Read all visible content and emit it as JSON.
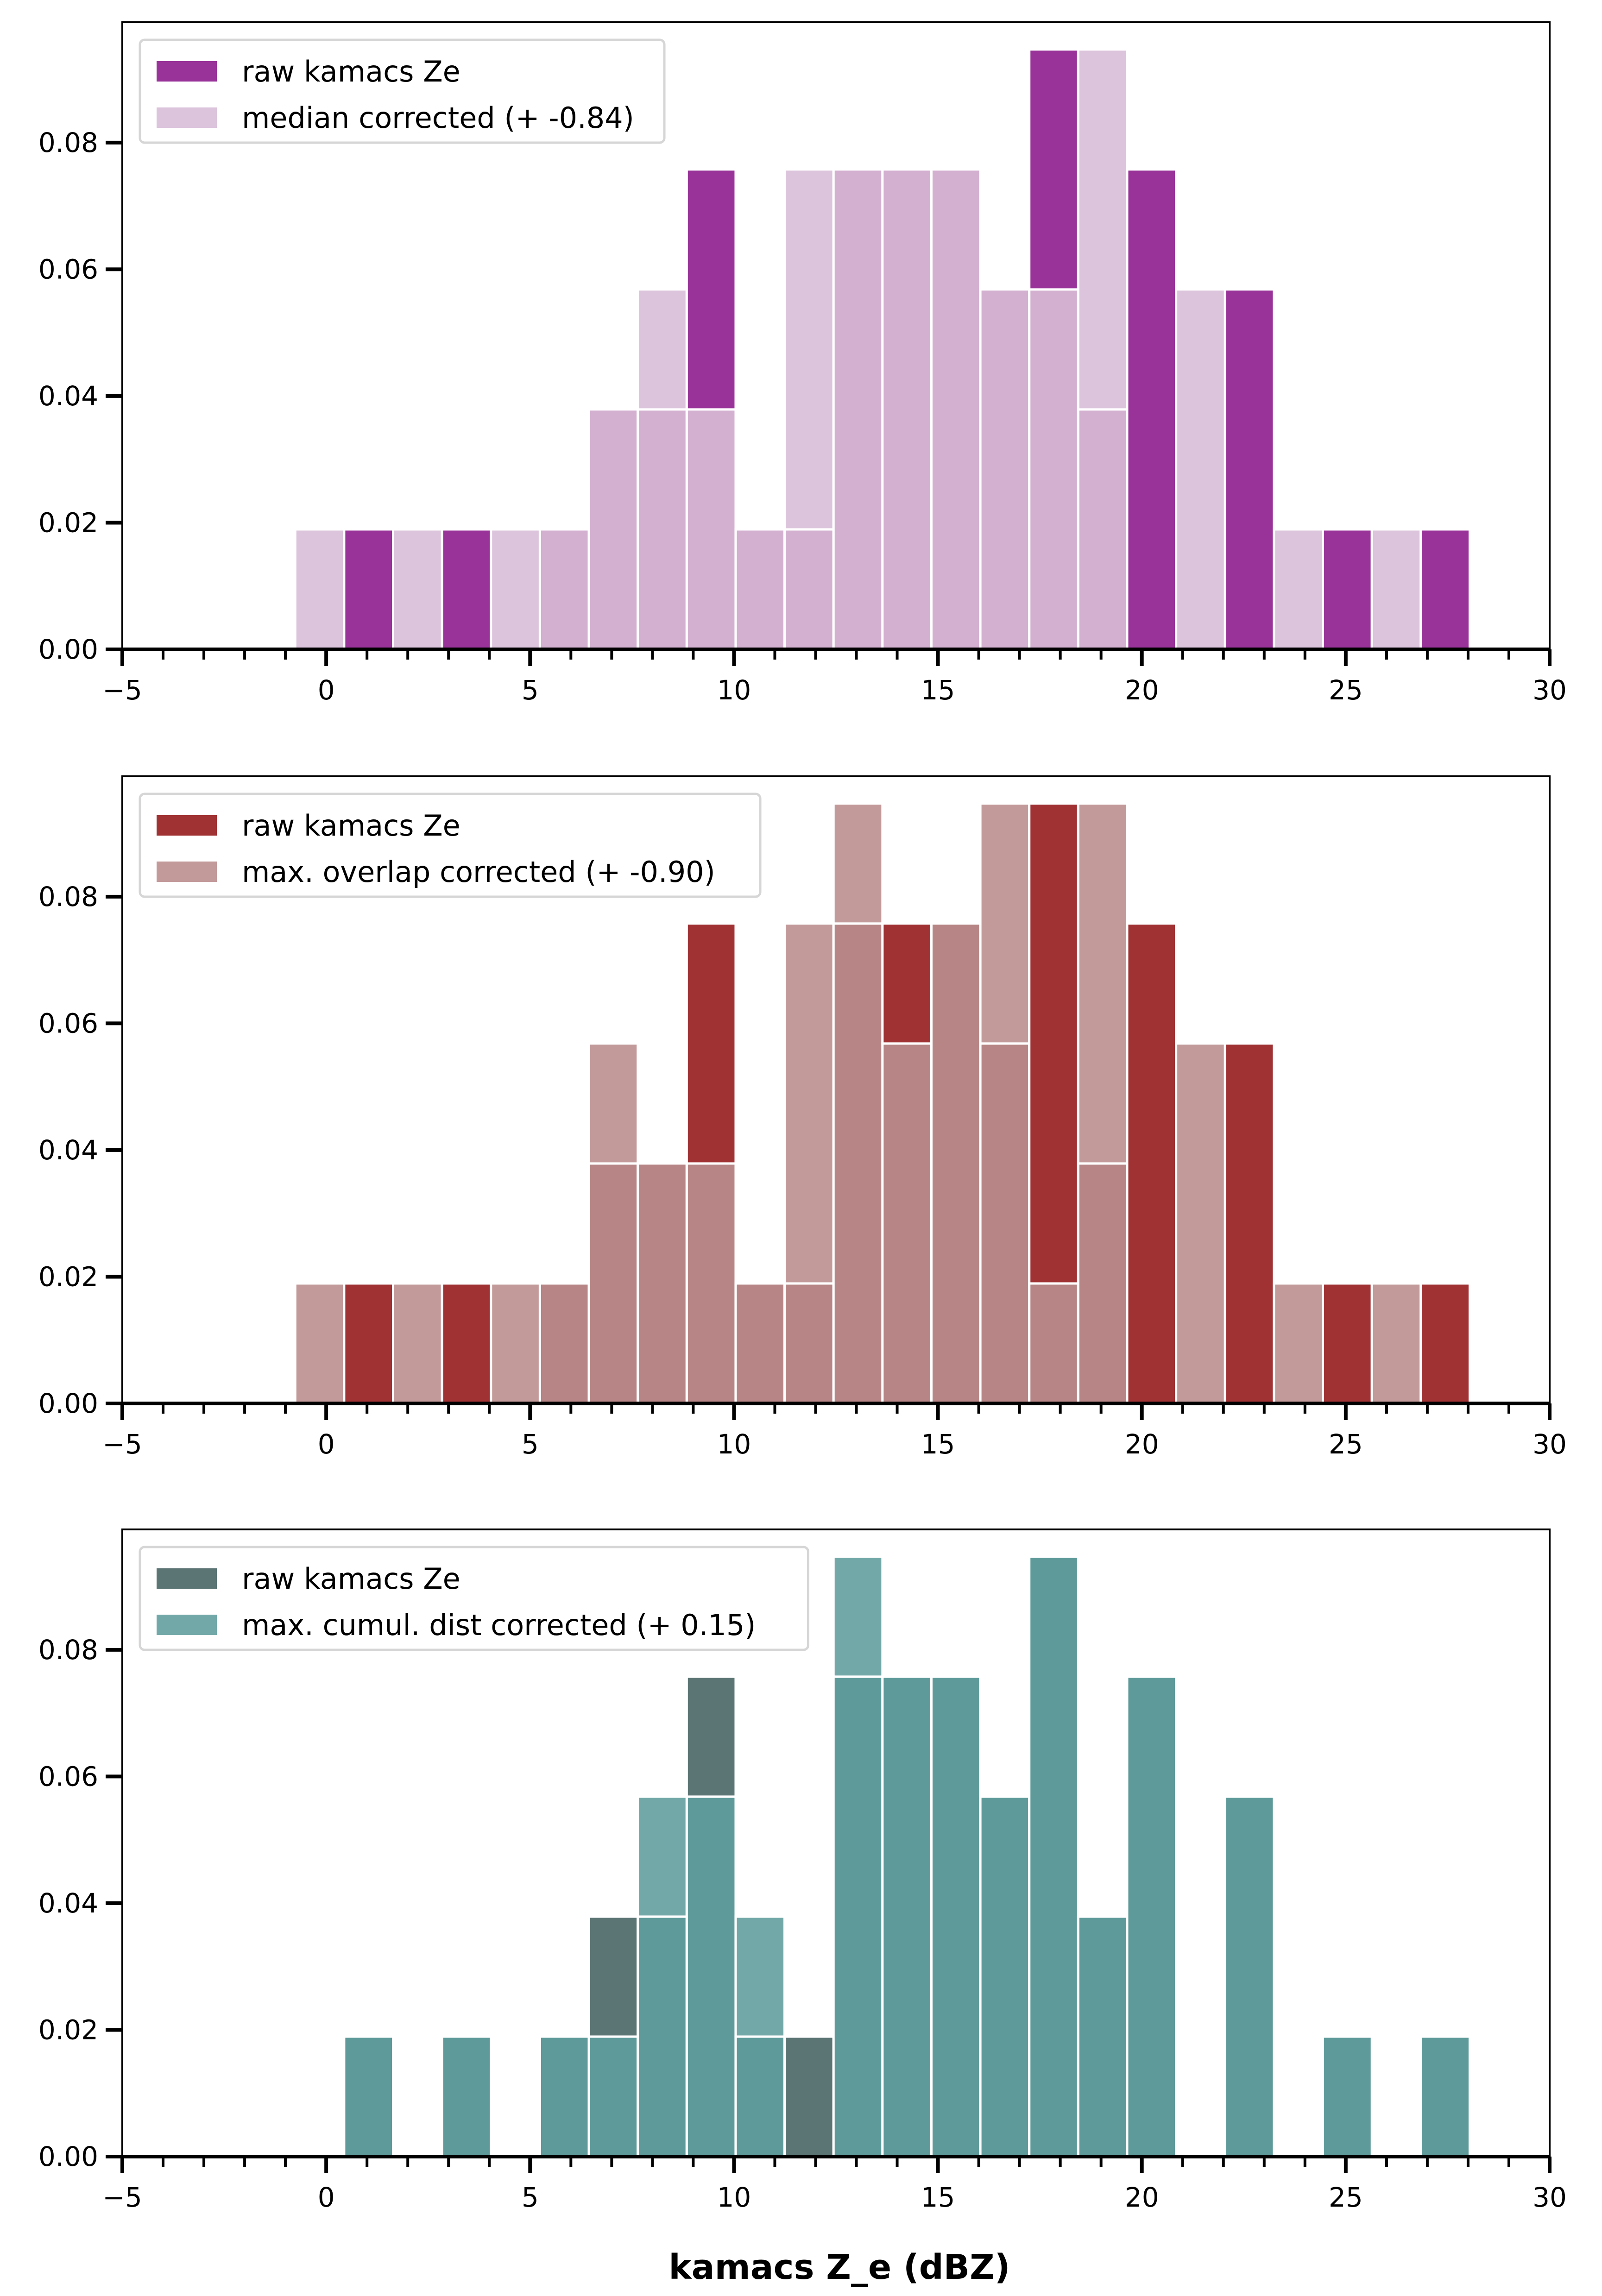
{
  "chart_data": [
    {
      "type": "bar",
      "subtype": "overlaid-histogram",
      "title": "",
      "xlabel": "",
      "ylabel": "",
      "xlim": [
        -5,
        30
      ],
      "ylim": [
        0,
        0.099
      ],
      "xticks": [
        "−5",
        "0",
        "5",
        "10",
        "15",
        "20",
        "25",
        "30"
      ],
      "xtick_values": [
        -5,
        0,
        5,
        10,
        15,
        20,
        25,
        30
      ],
      "yticks": [
        "0.00",
        "0.02",
        "0.04",
        "0.06",
        "0.08"
      ],
      "ytick_values": [
        0,
        0.02,
        0.04,
        0.06,
        0.08
      ],
      "grid": false,
      "legend_position": "top-left",
      "bin_start": -0.76,
      "bin_width": 1.2,
      "density_per_count": 0.01894,
      "series": [
        {
          "name": "raw kamacs Ze",
          "color": "#993399",
          "counts": [
            0,
            1,
            0,
            1,
            0,
            1,
            2,
            2,
            4,
            1,
            1,
            4,
            4,
            4,
            3,
            5,
            2,
            4,
            0,
            3,
            0,
            1,
            0,
            1
          ]
        },
        {
          "name": "median corrected (+ -0.84)",
          "color": "#dcc4dc",
          "counts": [
            1,
            0,
            1,
            0,
            1,
            1,
            2,
            3,
            2,
            1,
            4,
            4,
            4,
            4,
            3,
            3,
            5,
            0,
            3,
            0,
            1,
            0,
            1,
            0
          ]
        }
      ],
      "overlap_color": "#d3afd0"
    },
    {
      "type": "bar",
      "subtype": "overlaid-histogram",
      "title": "",
      "xlabel": "",
      "ylabel": "",
      "xlim": [
        -5,
        30
      ],
      "ylim": [
        0,
        0.099
      ],
      "xticks": [
        "−5",
        "0",
        "5",
        "10",
        "15",
        "20",
        "25",
        "30"
      ],
      "xtick_values": [
        -5,
        0,
        5,
        10,
        15,
        20,
        25,
        30
      ],
      "yticks": [
        "0.00",
        "0.02",
        "0.04",
        "0.06",
        "0.08"
      ],
      "ytick_values": [
        0,
        0.02,
        0.04,
        0.06,
        0.08
      ],
      "grid": false,
      "legend_position": "top-left",
      "bin_start": -0.76,
      "bin_width": 1.2,
      "density_per_count": 0.01894,
      "series": [
        {
          "name": "raw kamacs Ze",
          "color": "#a03234",
          "counts": [
            0,
            1,
            0,
            1,
            0,
            1,
            2,
            2,
            4,
            1,
            1,
            4,
            4,
            4,
            3,
            5,
            2,
            4,
            0,
            3,
            0,
            1,
            0,
            1
          ]
        },
        {
          "name": "max. overlap corrected (+ -0.90)",
          "color": "#c39a9a",
          "counts": [
            1,
            0,
            1,
            0,
            1,
            1,
            3,
            2,
            2,
            1,
            4,
            5,
            3,
            4,
            5,
            1,
            5,
            0,
            3,
            0,
            1,
            0,
            1,
            0
          ]
        }
      ],
      "overlap_color": "#b78585"
    },
    {
      "type": "bar",
      "subtype": "overlaid-histogram",
      "title": "",
      "xlabel": "kamacs Z_e (dBZ)",
      "ylabel": "",
      "xlim": [
        -5,
        30
      ],
      "ylim": [
        0,
        0.099
      ],
      "xticks": [
        "−5",
        "0",
        "5",
        "10",
        "15",
        "20",
        "25",
        "30"
      ],
      "xtick_values": [
        -5,
        0,
        5,
        10,
        15,
        20,
        25,
        30
      ],
      "yticks": [
        "0.00",
        "0.02",
        "0.04",
        "0.06",
        "0.08"
      ],
      "ytick_values": [
        0,
        0.02,
        0.04,
        0.06,
        0.08
      ],
      "grid": false,
      "legend_position": "top-left",
      "bin_start": -0.76,
      "bin_width": 1.2,
      "density_per_count": 0.01894,
      "series": [
        {
          "name": "raw kamacs Ze",
          "color": "#5b7474",
          "counts": [
            0,
            1,
            0,
            1,
            0,
            1,
            2,
            2,
            4,
            1,
            1,
            4,
            4,
            4,
            3,
            5,
            2,
            4,
            0,
            3,
            0,
            1,
            0,
            1
          ]
        },
        {
          "name": "max. cumul. dist corrected (+ 0.15)",
          "color": "#72a8a8",
          "counts": [
            0,
            1,
            0,
            1,
            0,
            1,
            1,
            3,
            3,
            2,
            0,
            5,
            4,
            4,
            3,
            5,
            2,
            4,
            0,
            3,
            0,
            1,
            0,
            1
          ]
        }
      ],
      "overlap_color": "#5e9a9a"
    }
  ]
}
